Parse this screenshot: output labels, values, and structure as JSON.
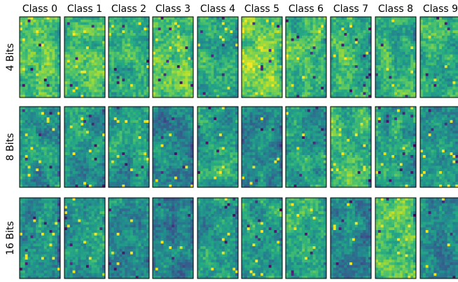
{
  "chart_data": {
    "type": "heatmap",
    "colormap": "viridis",
    "column_labels": [
      "Class 0",
      "Class 1",
      "Class 2",
      "Class 3",
      "Class 4",
      "Class 5",
      "Class 6",
      "Class 7",
      "Class 8",
      "Class 9"
    ],
    "row_labels": [
      "4 Bits",
      "8 Bits",
      "16 Bits"
    ],
    "cell_grid": {
      "rows": 30,
      "cols": 15
    },
    "mean_intensity": [
      [
        0.7,
        0.68,
        0.62,
        0.74,
        0.62,
        0.8,
        0.66,
        0.65,
        0.66,
        0.63
      ],
      [
        0.5,
        0.52,
        0.56,
        0.46,
        0.58,
        0.47,
        0.56,
        0.68,
        0.58,
        0.52
      ],
      [
        0.5,
        0.52,
        0.5,
        0.47,
        0.55,
        0.58,
        0.6,
        0.45,
        0.72,
        0.48
      ]
    ],
    "axes": {
      "ticks": false,
      "frame": true
    }
  }
}
